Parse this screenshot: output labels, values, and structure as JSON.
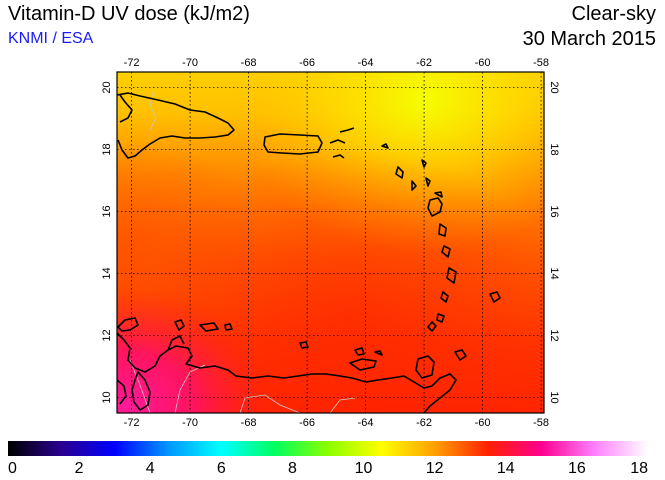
{
  "header": {
    "title": "Vitamin-D UV dose (kJ/m2)",
    "source": "KNMI / ESA",
    "condition": "Clear-sky",
    "date": "30 March 2015"
  },
  "map": {
    "lon_range": [
      -72.5,
      -57.9
    ],
    "lat_range": [
      9.5,
      20.5
    ],
    "lon_ticks": [
      -72,
      -70,
      -68,
      -66,
      -64,
      -62,
      -60,
      -58
    ],
    "lat_ticks": [
      10,
      12,
      14,
      16,
      18,
      20
    ],
    "lon_labels": [
      "-72",
      "-70",
      "-68",
      "-66",
      "-64",
      "-62",
      "-60",
      "-58"
    ],
    "lat_labels": [
      "10",
      "12",
      "14",
      "16",
      "18",
      "20"
    ],
    "coastline_color": "#000000",
    "border_color": "#c8c8c8"
  },
  "colorbar": {
    "min": 0,
    "max": 18,
    "tick_values": [
      0,
      2,
      4,
      6,
      8,
      10,
      12,
      14,
      16,
      18
    ],
    "tick_labels": [
      "0",
      "2",
      "4",
      "6",
      "8",
      "10",
      "12",
      "14",
      "16",
      "18"
    ],
    "stops": [
      "#000000",
      "#2a0090",
      "#0000ff",
      "#0096ff",
      "#00ffff",
      "#00ff60",
      "#8cff00",
      "#ffff00",
      "#ffa000",
      "#ff2000",
      "#ff0090",
      "#ff80ff",
      "#ffffff"
    ]
  }
}
